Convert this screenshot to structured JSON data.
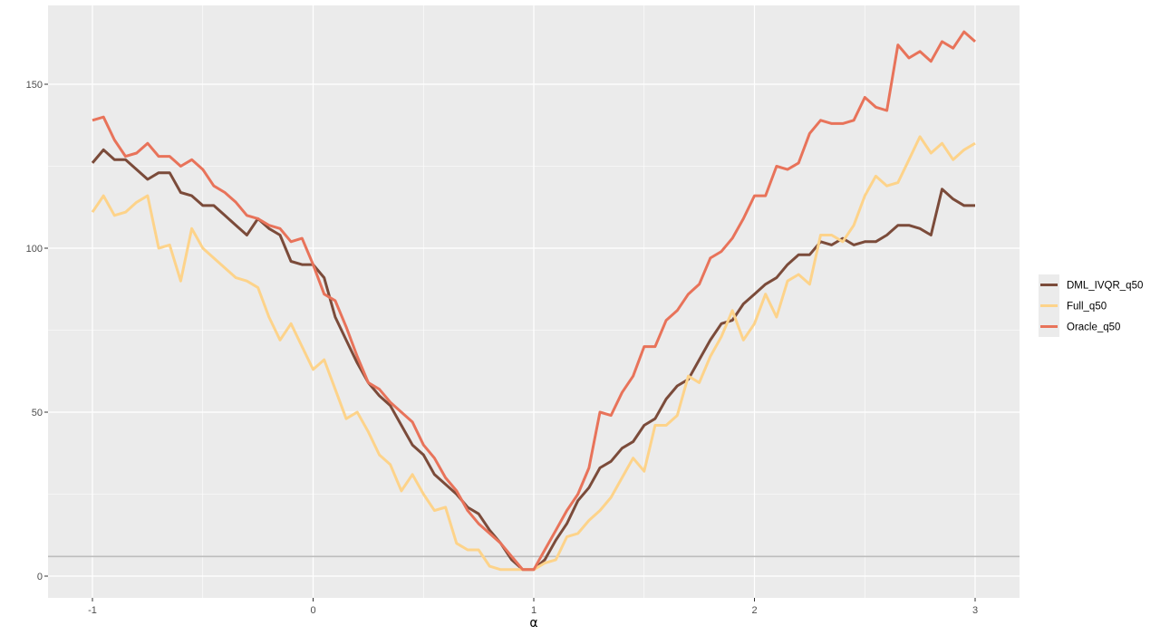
{
  "chart_data": {
    "type": "line",
    "xlabel": "α",
    "ylabel": "",
    "xlim": [
      -1.2,
      3.2
    ],
    "ylim": [
      -6,
      175
    ],
    "x_ticks": [
      -1,
      0,
      1,
      2,
      3
    ],
    "x_tick_labels": [
      "-1",
      "0",
      "1",
      "2",
      "3"
    ],
    "y_ticks": [
      0,
      50,
      100,
      150
    ],
    "y_tick_labels": [
      "0",
      "50",
      "100",
      "150"
    ],
    "grid": true,
    "legend_position": "right",
    "reference_line": {
      "y": 6,
      "color": "#bdbdbd"
    },
    "x": [
      -1,
      -0.95,
      -0.9,
      -0.85,
      -0.8,
      -0.75,
      -0.7,
      -0.65,
      -0.6,
      -0.55,
      -0.5,
      -0.45,
      -0.4,
      -0.35,
      -0.3,
      -0.25,
      -0.2,
      -0.15,
      -0.1,
      -0.05,
      0,
      0.05,
      0.1,
      0.15,
      0.2,
      0.25,
      0.3,
      0.35,
      0.4,
      0.45,
      0.5,
      0.55,
      0.6,
      0.65,
      0.7,
      0.75,
      0.8,
      0.85,
      0.9,
      0.95,
      1,
      1.05,
      1.1,
      1.15,
      1.2,
      1.25,
      1.3,
      1.35,
      1.4,
      1.45,
      1.5,
      1.55,
      1.6,
      1.65,
      1.7,
      1.75,
      1.8,
      1.85,
      1.9,
      1.95,
      2,
      2.05,
      2.1,
      2.15,
      2.2,
      2.25,
      2.3,
      2.35,
      2.4,
      2.45,
      2.5,
      2.55,
      2.6,
      2.65,
      2.7,
      2.75,
      2.8,
      2.85,
      2.9,
      2.95,
      3
    ],
    "series": [
      {
        "name": "DML_IVQR_q50",
        "color": "#7b4b3a",
        "values": [
          126,
          130,
          127,
          127,
          124,
          121,
          123,
          123,
          117,
          116,
          113,
          113,
          110,
          107,
          104,
          109,
          106,
          104,
          96,
          95,
          95,
          91,
          79,
          72,
          65,
          59,
          55,
          52,
          46,
          40,
          37,
          31,
          28,
          25,
          21,
          19,
          14,
          10,
          5,
          2,
          2,
          5,
          11,
          16,
          23,
          27,
          33,
          35,
          39,
          41,
          46,
          48,
          54,
          58,
          60,
          66,
          72,
          77,
          78,
          83,
          86,
          89,
          91,
          95,
          98,
          98,
          102,
          101,
          103,
          101,
          102,
          102,
          104,
          107,
          107,
          106,
          104,
          118,
          115,
          113,
          113
        ]
      },
      {
        "name": "Full_q50",
        "color": "#fdd38a",
        "values": [
          111,
          116,
          110,
          111,
          114,
          116,
          100,
          101,
          90,
          106,
          100,
          97,
          94,
          91,
          90,
          88,
          79,
          72,
          77,
          70,
          63,
          66,
          57,
          48,
          50,
          44,
          37,
          34,
          26,
          31,
          25,
          20,
          21,
          10,
          8,
          8,
          3,
          2,
          2,
          2,
          2,
          4,
          5,
          12,
          13,
          17,
          20,
          24,
          30,
          36,
          32,
          46,
          46,
          49,
          61,
          59,
          67,
          73,
          81,
          72,
          77,
          86,
          79,
          90,
          92,
          89,
          104,
          104,
          102,
          107,
          116,
          122,
          119,
          120,
          127,
          134,
          129,
          132,
          127,
          130,
          132
        ]
      },
      {
        "name": "Oracle_q50",
        "color": "#e8735a",
        "values": [
          139,
          140,
          133,
          128,
          129,
          132,
          128,
          128,
          125,
          127,
          124,
          119,
          117,
          114,
          110,
          109,
          107,
          106,
          102,
          103,
          95,
          86,
          84,
          76,
          67,
          59,
          57,
          53,
          50,
          47,
          40,
          36,
          30,
          26,
          20,
          16,
          13,
          10,
          6,
          2,
          2,
          8,
          14,
          20,
          25,
          33,
          50,
          49,
          56,
          61,
          70,
          70,
          78,
          81,
          86,
          89,
          97,
          99,
          103,
          109,
          116,
          116,
          125,
          124,
          126,
          135,
          139,
          138,
          138,
          139,
          146,
          143,
          142,
          162,
          158,
          160,
          157,
          163,
          161,
          166,
          163
        ]
      }
    ]
  }
}
